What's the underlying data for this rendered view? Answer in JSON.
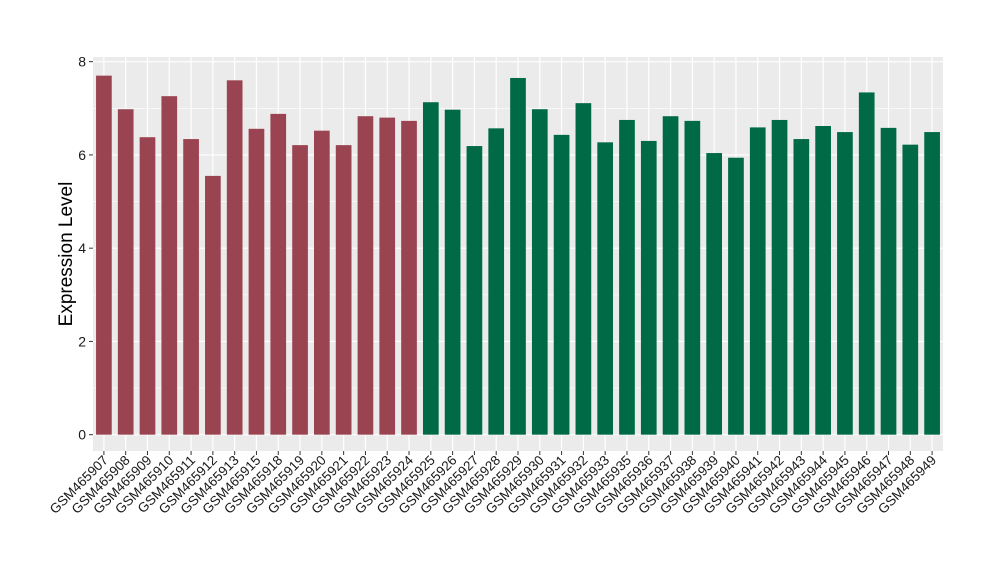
{
  "chart_data": {
    "type": "bar",
    "title": "",
    "xlabel": "",
    "ylabel": "Expression Level",
    "ylim": [
      -0.35,
      8.1
    ],
    "yticks": [
      0,
      2,
      4,
      6,
      8
    ],
    "grid": true,
    "legend": "none",
    "colors": {
      "group_a": "#9B4451",
      "group_b": "#006A46",
      "panel_bg": "#EBEBEB",
      "grid": "#FFFFFF"
    },
    "categories": [
      "GSM465907",
      "GSM465908",
      "GSM465909",
      "GSM465910",
      "GSM465911",
      "GSM465912",
      "GSM465913",
      "GSM465915",
      "GSM465918",
      "GSM465919",
      "GSM465920",
      "GSM465921",
      "GSM465922",
      "GSM465923",
      "GSM465924",
      "GSM465925",
      "GSM465926",
      "GSM465927",
      "GSM465928",
      "GSM465929",
      "GSM465930",
      "GSM465931",
      "GSM465932",
      "GSM465933",
      "GSM465935",
      "GSM465936",
      "GSM465937",
      "GSM465938",
      "GSM465939",
      "GSM465940",
      "GSM465941",
      "GSM465942",
      "GSM465943",
      "GSM465944",
      "GSM465945",
      "GSM465946",
      "GSM465947",
      "GSM465948",
      "GSM465949"
    ],
    "values": [
      7.7,
      6.98,
      6.38,
      7.26,
      6.34,
      5.55,
      7.6,
      6.56,
      6.88,
      6.21,
      6.52,
      6.21,
      6.83,
      6.8,
      6.73,
      7.13,
      6.97,
      6.19,
      6.57,
      7.65,
      6.98,
      6.43,
      7.11,
      6.27,
      6.75,
      6.3,
      6.83,
      6.73,
      6.04,
      5.94,
      6.59,
      6.75,
      6.34,
      6.62,
      6.49,
      7.34,
      6.58,
      6.22,
      6.49
    ],
    "group": [
      "a",
      "a",
      "a",
      "a",
      "a",
      "a",
      "a",
      "a",
      "a",
      "a",
      "a",
      "a",
      "a",
      "a",
      "a",
      "b",
      "b",
      "b",
      "b",
      "b",
      "b",
      "b",
      "b",
      "b",
      "b",
      "b",
      "b",
      "b",
      "b",
      "b",
      "b",
      "b",
      "b",
      "b",
      "b",
      "b",
      "b",
      "b",
      "b"
    ]
  }
}
